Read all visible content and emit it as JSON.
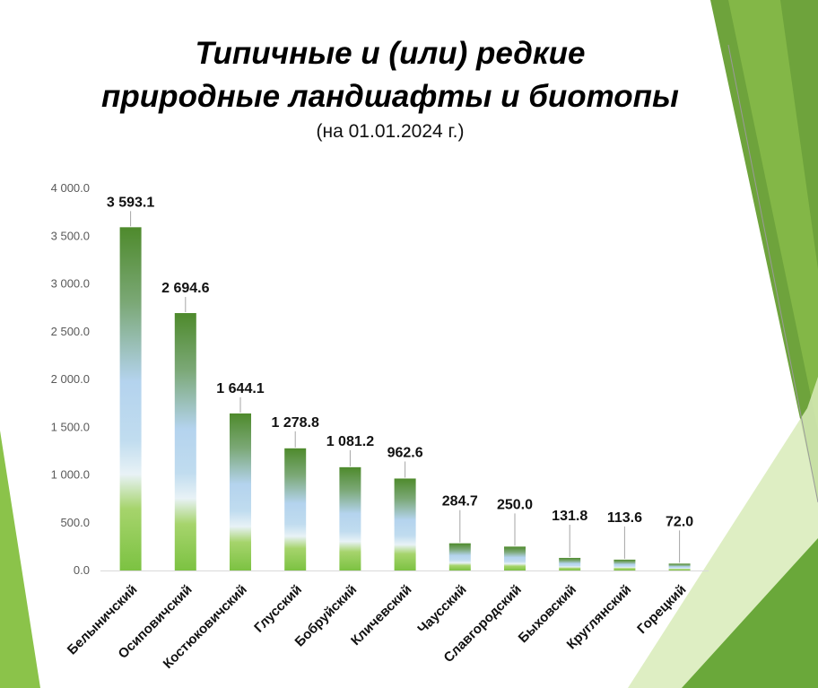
{
  "title_line1": "Типичные и (или) редкие",
  "title_line2": "природные ландшафты и биотопы",
  "subtitle": "(на 01.01.2024 г.)",
  "colors": {
    "bar_top": "#4f8a2e",
    "bar_mid": "#b4d3ee",
    "bar_bottom": "#7cc242",
    "decor_dark": "#5a9a32",
    "decor_light": "#cfe6a8"
  },
  "chart_data": {
    "type": "bar",
    "categories": [
      "Белыничский",
      "Осиповичский",
      "Костюковичский",
      "Глусский",
      "Бобруйский",
      "Кличевский",
      "Чаусский",
      "Славгородский",
      "Быховский",
      "Круглянский",
      "Горецкий"
    ],
    "values": [
      3593.1,
      2694.6,
      1644.1,
      1278.8,
      1081.2,
      962.6,
      284.7,
      250.0,
      131.8,
      113.6,
      72.0
    ],
    "value_labels": [
      "3 593.1",
      "2 694.6",
      "1 644.1",
      "1 278.8",
      "1 081.2",
      "962.6",
      "284.7",
      "250.0",
      "131.8",
      "113.6",
      "72.0"
    ],
    "y_ticks": [
      0,
      500,
      1000,
      1500,
      2000,
      2500,
      3000,
      3500,
      4000
    ],
    "y_tick_labels": [
      "0.0",
      "500.0",
      "1 000.0",
      "1 500.0",
      "2 000.0",
      "2 500.0",
      "3 000.0",
      "3 500.0",
      "4 000.0"
    ],
    "ylim": [
      0,
      4000
    ],
    "xlabel": "",
    "ylabel": "",
    "grid": false,
    "legend": "none"
  }
}
